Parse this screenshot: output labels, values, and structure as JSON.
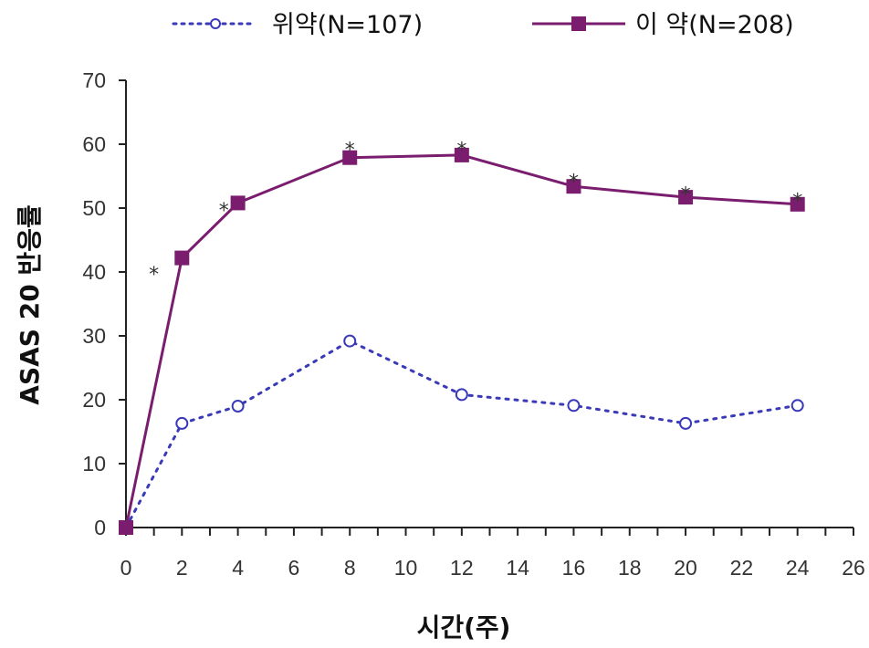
{
  "chart_data": {
    "type": "line",
    "title": "",
    "xlabel": "시간(주)",
    "ylabel": "ASAS 20 반응률",
    "xlim": [
      0,
      26
    ],
    "ylim": [
      0,
      70
    ],
    "x_ticks": [
      "0",
      "2",
      "4",
      "6",
      "8",
      "10",
      "12",
      "14",
      "16",
      "18",
      "20",
      "22",
      "24",
      "26"
    ],
    "y_ticks": [
      "0",
      "10",
      "20",
      "30",
      "40",
      "50",
      "60",
      "70"
    ],
    "grid": false,
    "legend_position": "top",
    "series": [
      {
        "name": "위약(N=107)",
        "style": "dotted",
        "marker": "open-circle",
        "color": "#3a3ab8",
        "x": [
          0,
          2,
          4,
          8,
          12,
          16,
          20,
          24
        ],
        "y": [
          0,
          16.3,
          19,
          29.2,
          20.8,
          19.1,
          16.3,
          19.1
        ]
      },
      {
        "name": "이 약(N=208)",
        "style": "solid",
        "marker": "filled-square",
        "color": "#7a1d6e",
        "x": [
          0,
          2,
          4,
          8,
          12,
          16,
          20,
          24
        ],
        "y": [
          0,
          42.2,
          50.8,
          57.9,
          58.3,
          53.4,
          51.7,
          50.6
        ]
      }
    ],
    "annotations": [
      {
        "text": "*",
        "x": 1,
        "y": 40
      },
      {
        "text": "*",
        "x": 3.5,
        "y": 50
      },
      {
        "text": "*",
        "x": 8,
        "y": 59.5
      },
      {
        "text": "*",
        "x": 12,
        "y": 59.5
      },
      {
        "text": "*",
        "x": 16,
        "y": 54.5
      },
      {
        "text": "*",
        "x": 20,
        "y": 52.5
      },
      {
        "text": "*",
        "x": 24,
        "y": 51.5
      }
    ]
  }
}
